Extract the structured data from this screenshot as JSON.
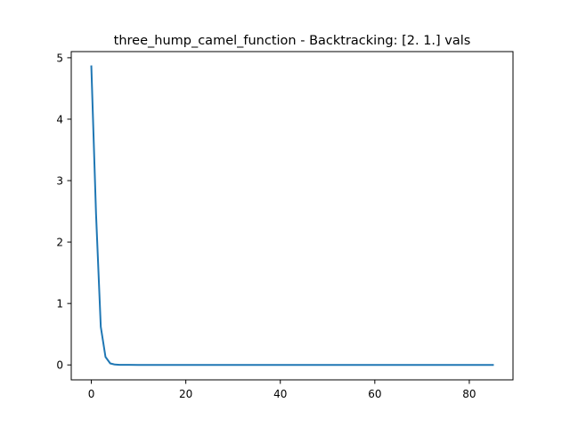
{
  "chart_data": {
    "type": "line",
    "title": "three_hump_camel_function - Backtracking: [2. 1.] vals",
    "xlabel": "",
    "ylabel": "",
    "xlim": [
      -4.25,
      89.25
    ],
    "ylim": [
      -0.243,
      5.1
    ],
    "xticks": [
      0,
      20,
      40,
      60,
      80
    ],
    "yticks": [
      0,
      1,
      2,
      3,
      4,
      5
    ],
    "grid": false,
    "series": [
      {
        "color": "#1f77b4",
        "x": [
          0,
          1,
          2,
          3,
          4,
          5,
          6,
          7,
          8,
          10,
          15,
          20,
          30,
          40,
          50,
          60,
          70,
          80,
          85
        ],
        "y": [
          4.86,
          2.45,
          0.62,
          0.13,
          0.025,
          0.006,
          0.002,
          0.001,
          0.0005,
          0.0002,
          0.0001,
          0.0,
          0.0,
          0.0,
          0.0,
          0.0,
          0.0,
          0.0,
          0.0
        ]
      }
    ]
  }
}
